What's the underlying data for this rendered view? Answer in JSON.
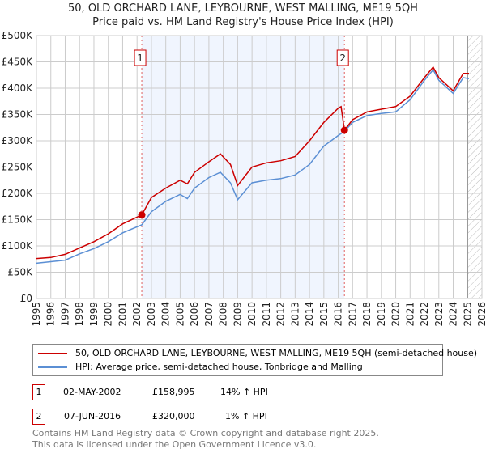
{
  "chart_data": {
    "type": "line",
    "title": "50, OLD ORCHARD LANE, LEYBOURNE, WEST MALLING, ME19 5QH",
    "subtitle": "Price paid vs. HM Land Registry's House Price Index (HPI)",
    "xlim": [
      1995,
      2026
    ],
    "ylim": [
      0,
      500000
    ],
    "x_ticks": [
      "1995",
      "1996",
      "1997",
      "1998",
      "1999",
      "2000",
      "2001",
      "2002",
      "2003",
      "2004",
      "2005",
      "2006",
      "2007",
      "2008",
      "2009",
      "2010",
      "2011",
      "2012",
      "2013",
      "2014",
      "2015",
      "2016",
      "2017",
      "2018",
      "2019",
      "2020",
      "2021",
      "2022",
      "2023",
      "2024",
      "2025",
      "2026"
    ],
    "y_ticks": [
      {
        "v": 0,
        "label": "£0"
      },
      {
        "v": 50000,
        "label": "£50K"
      },
      {
        "v": 100000,
        "label": "£100K"
      },
      {
        "v": 150000,
        "label": "£150K"
      },
      {
        "v": 200000,
        "label": "£200K"
      },
      {
        "v": 250000,
        "label": "£250K"
      },
      {
        "v": 300000,
        "label": "£300K"
      },
      {
        "v": 350000,
        "label": "£350K"
      },
      {
        "v": 400000,
        "label": "£400K"
      },
      {
        "v": 450000,
        "label": "£450K"
      },
      {
        "v": 500000,
        "label": "£500K"
      }
    ],
    "grid": true,
    "series": [
      {
        "name": "50, OLD ORCHARD LANE, LEYBOURNE, WEST MALLING, ME19 5QH (semi-detached house)",
        "color": "#cc0000",
        "x": [
          1995,
          1996,
          1997,
          1998,
          1999,
          2000,
          2001,
          2002.33,
          2003,
          2004,
          2005,
          2005.5,
          2006,
          2007,
          2007.8,
          2008.5,
          2009,
          2010,
          2011,
          2012,
          2013,
          2014,
          2015,
          2016,
          2016.2,
          2016.43,
          2017,
          2018,
          2019,
          2020,
          2021,
          2022,
          2022.6,
          2023,
          2024,
          2024.7,
          2025.1
        ],
        "y": [
          76000,
          78000,
          84000,
          96000,
          108000,
          123000,
          142000,
          158995,
          192000,
          210000,
          225000,
          218000,
          240000,
          260000,
          275000,
          255000,
          215000,
          250000,
          258000,
          262000,
          270000,
          300000,
          335000,
          362000,
          365000,
          320000,
          340000,
          355000,
          360000,
          365000,
          385000,
          420000,
          440000,
          420000,
          395000,
          428000,
          428000
        ]
      },
      {
        "name": "HPI: Average price, semi-detached house, Tonbridge and Malling",
        "color": "#5b8fd4",
        "x": [
          1995,
          1996,
          1997,
          1998,
          1999,
          2000,
          2001,
          2002.33,
          2003,
          2004,
          2005,
          2005.5,
          2006,
          2007,
          2007.8,
          2008.5,
          2009,
          2010,
          2011,
          2012,
          2013,
          2014,
          2015,
          2016,
          2016.43,
          2017,
          2018,
          2019,
          2020,
          2021,
          2022,
          2022.6,
          2023,
          2024,
          2024.7,
          2025.1
        ],
        "y": [
          67000,
          70000,
          73000,
          85000,
          95000,
          108000,
          125000,
          140000,
          165000,
          185000,
          198000,
          190000,
          210000,
          230000,
          240000,
          220000,
          188000,
          220000,
          225000,
          228000,
          235000,
          255000,
          290000,
          310000,
          318000,
          335000,
          348000,
          352000,
          355000,
          378000,
          415000,
          435000,
          415000,
          390000,
          420000,
          418000
        ]
      }
    ],
    "sales": [
      {
        "label": "1",
        "x": 2002.33,
        "y": 158995
      },
      {
        "label": "2",
        "x": 2016.43,
        "y": 320000
      }
    ],
    "forecast_from": 2025.0
  },
  "legend": {
    "property": "50, OLD ORCHARD LANE, LEYBOURNE, WEST MALLING, ME19 5QH (semi-detached house)",
    "hpi": "HPI: Average price, semi-detached house, Tonbridge and Malling"
  },
  "sales_table": [
    {
      "num": "1",
      "date": "02-MAY-2002",
      "price": "£158,995",
      "delta": "14% ↑ HPI"
    },
    {
      "num": "2",
      "date": "07-JUN-2016",
      "price": "£320,000",
      "delta": "1% ↑ HPI"
    }
  ],
  "footer": {
    "line1": "Contains HM Land Registry data © Crown copyright and database right 2025.",
    "line2": "This data is licensed under the Open Government Licence v3.0."
  },
  "colors": {
    "red": "#cc0000",
    "blue": "#5b8fd4",
    "shade": "#f0f5fe"
  }
}
